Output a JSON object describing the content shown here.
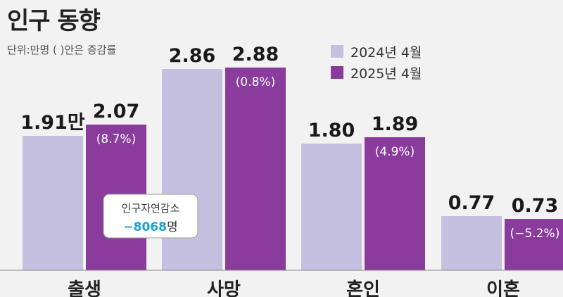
{
  "title": "인구 동향",
  "unit_note": "단위:만명 ( )안은  증감률",
  "colors": {
    "series_2024": "#c5c0e0",
    "series_2025": "#8a3c9c",
    "background": "#f2f2f2",
    "callout_value": "#1aa0d8"
  },
  "callout": {
    "label": "인구자연감소",
    "value": "−8068",
    "unit": "명"
  },
  "chart_data": {
    "type": "bar",
    "title": "인구 동향",
    "unit": "만명",
    "categories": [
      "출생",
      "사망",
      "혼인",
      "이혼"
    ],
    "series": [
      {
        "name": "2024년 4월",
        "values": [
          1.91,
          2.86,
          1.8,
          0.77
        ],
        "labels": [
          "1.91만",
          "2.86",
          "1.80",
          "0.77"
        ]
      },
      {
        "name": "2025년 4월",
        "values": [
          2.07,
          2.88,
          1.89,
          0.73
        ],
        "labels": [
          "2.07",
          "2.88",
          "1.89",
          "0.73"
        ],
        "change_labels": [
          "(8.7%)",
          "(0.8%)",
          "(4.9%)",
          "(−5.2%)"
        ]
      }
    ],
    "ylim": [
      0,
      3.6
    ],
    "grid": false,
    "legend": "top-right"
  }
}
